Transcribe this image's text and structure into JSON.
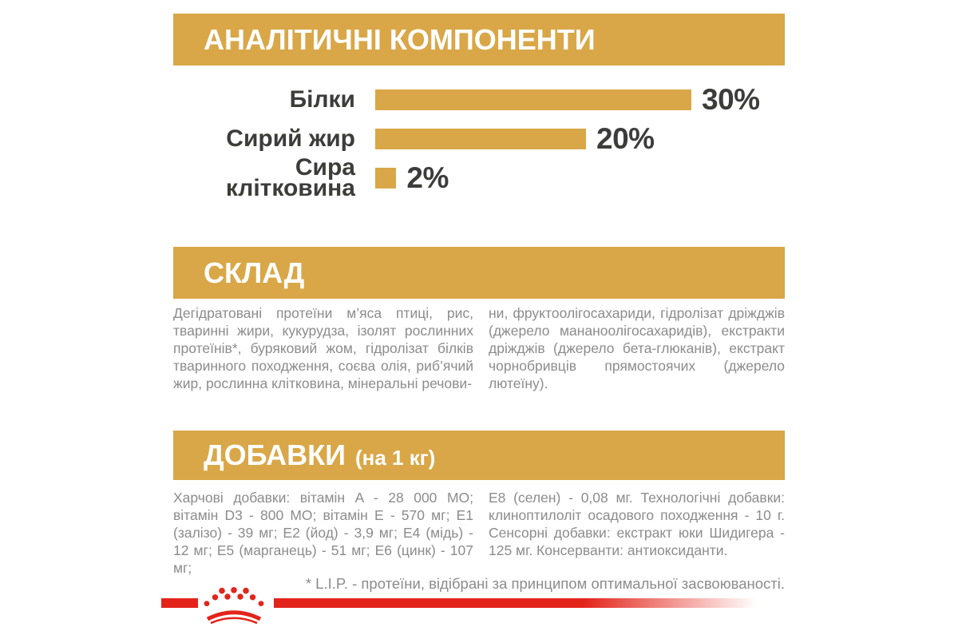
{
  "colors": {
    "gold": "#D9A748",
    "red": "#E3241B",
    "dark_text": "#3C3C3B",
    "body_text": "#8C8C8C",
    "banner_text": "#FFFFFF"
  },
  "sections": {
    "analytical": {
      "title": "АНАЛІТИЧНІ КОМПОНЕНТИ"
    },
    "composition": {
      "title": "СКЛАД",
      "col_left": "Дегідратовані протеїни м’яса птиці, рис, тваринні жири, кукурудза, ізолят рослинних протеїнів*, буряковий жом, гідролізат білків тваринного походження, соєва олія, риб’ячий жир, рослинна клітковина, мінеральні речови-",
      "col_right": "ни, фруктоолігосахариди, гідролізат дріжджів (джерело мананоолігосахаридів), екстракти дріжджів (джерело бета-глюканів), екстракт чорнобривців прямостоячих (джерело лютеїну)."
    },
    "additives": {
      "title": "ДОБАВКИ",
      "title_suffix": "(на 1 кг)",
      "col_left": "Харчові добавки: вітамін A - 28 000 МО; вітамін D3 - 800 МО; вітамін E - 570 мг; E1 (залізо) - 39 мг; E2 (йод) - 3,9 мг; E4 (мідь) - 12 мг; E5 (марганець) - 51 мг; E6 (цинк) - 107 мг;",
      "col_right": "E8 (селен) - 0,08 мг. Технологічні добавки: клиноптилоліт осадового походження - 10 г. Сенсорні добавки: екстракт юки Шидигера - 125 мг. Консерванти: антиоксиданти."
    }
  },
  "chart_data": {
    "type": "bar",
    "orientation": "horizontal",
    "categories": [
      "Білки",
      "Сирий жир",
      "Сира клітковина"
    ],
    "values": [
      30,
      20,
      2
    ],
    "value_labels": [
      "30%",
      "20%",
      "2%"
    ],
    "unit": "%",
    "xlim": [
      0,
      30
    ],
    "bar_color": "#D9A748",
    "grid": false,
    "legend": false
  },
  "footnote": "* L.I.P. - протеїни, відібрані за принципом оптимальної засвоюваності.",
  "logo": {
    "name": "royal-canin-crown"
  }
}
